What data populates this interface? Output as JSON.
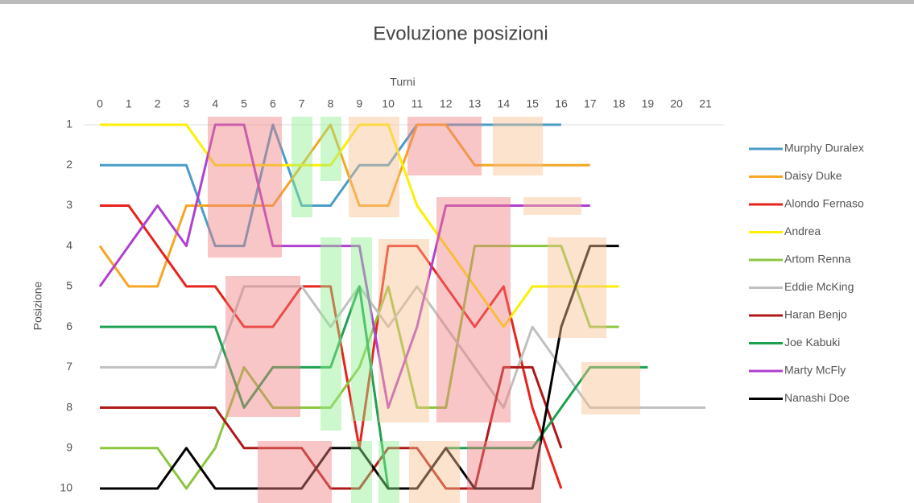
{
  "chart_data": {
    "type": "line",
    "title": "Evoluzione posizioni",
    "x_label": "Turni",
    "y_label": "Posizione",
    "x": [
      0,
      1,
      2,
      3,
      4,
      5,
      6,
      7,
      8,
      9,
      10,
      11,
      12,
      13,
      14,
      15,
      16,
      17,
      18,
      19,
      20,
      21
    ],
    "xlim": [
      0,
      21
    ],
    "xticks": [
      0,
      1,
      2,
      3,
      4,
      5,
      6,
      7,
      8,
      9,
      10,
      11,
      12,
      13,
      14,
      15,
      16,
      17,
      18,
      19,
      20,
      21
    ],
    "ylim": [
      1,
      10
    ],
    "yticks": [
      1,
      2,
      3,
      4,
      5,
      6,
      7,
      8,
      9,
      10
    ],
    "y_reversed": true,
    "x_axis_position": "top",
    "legend": "right",
    "series": [
      {
        "name": "Murphy Duralex",
        "color": "#4a9cc8",
        "values": [
          2,
          2,
          2,
          2,
          4,
          4,
          1,
          3,
          3,
          2,
          2,
          1,
          1,
          1,
          1,
          1,
          1,
          null,
          null,
          null,
          null,
          null
        ]
      },
      {
        "name": "Daisy Duke",
        "color": "#f5a623",
        "values": [
          4,
          5,
          5,
          3,
          3,
          3,
          3,
          2,
          1,
          3,
          3,
          1,
          1,
          2,
          2,
          2,
          2,
          2,
          null,
          null,
          null,
          null
        ]
      },
      {
        "name": "Alondo Fernaso",
        "color": "#e8221c",
        "values": [
          3,
          3,
          4,
          5,
          5,
          6,
          6,
          5,
          5,
          9,
          4,
          4,
          5,
          6,
          5,
          8,
          10,
          null,
          null,
          null,
          null,
          null
        ]
      },
      {
        "name": "Andrea",
        "color": "#ffee00",
        "values": [
          1,
          1,
          1,
          1,
          2,
          2,
          2,
          2,
          2,
          1,
          1,
          3,
          4,
          5,
          6,
          5,
          5,
          5,
          5,
          null,
          null,
          null
        ]
      },
      {
        "name": "Artom Renna",
        "color": "#8cc63f",
        "values": [
          9,
          9,
          9,
          10,
          9,
          7,
          8,
          8,
          8,
          7,
          5,
          8,
          8,
          4,
          4,
          4,
          4,
          6,
          6,
          null,
          null,
          null
        ]
      },
      {
        "name": "Eddie McKing",
        "color": "#c0c0c0",
        "values": [
          7,
          7,
          7,
          7,
          7,
          5,
          5,
          5,
          6,
          5,
          6,
          5,
          6,
          7,
          8,
          6,
          7,
          8,
          8,
          8,
          8,
          8
        ]
      },
      {
        "name": "Haran Benjo",
        "color": "#b01818",
        "values": [
          8,
          8,
          8,
          8,
          8,
          9,
          9,
          9,
          10,
          10,
          9,
          9,
          10,
          10,
          7,
          7,
          9,
          null,
          null,
          null,
          null,
          null
        ]
      },
      {
        "name": "Joe Kabuki",
        "color": "#1ea050",
        "values": [
          6,
          6,
          6,
          6,
          6,
          8,
          7,
          7,
          7,
          5,
          10,
          10,
          9,
          9,
          9,
          9,
          8,
          7,
          7,
          7,
          null,
          null
        ]
      },
      {
        "name": "Marty McFly",
        "color": "#b040d0",
        "values": [
          5,
          4,
          3,
          4,
          1,
          1,
          4,
          4,
          4,
          4,
          8,
          6,
          3,
          3,
          3,
          3,
          3,
          3,
          null,
          null,
          null,
          null
        ]
      },
      {
        "name": "Nanashi Doe",
        "color": "#000000",
        "values": [
          10,
          10,
          10,
          9,
          10,
          10,
          10,
          10,
          9,
          9,
          10,
          10,
          9,
          10,
          10,
          10,
          6,
          4,
          4,
          null,
          null,
          null
        ]
      }
    ]
  }
}
